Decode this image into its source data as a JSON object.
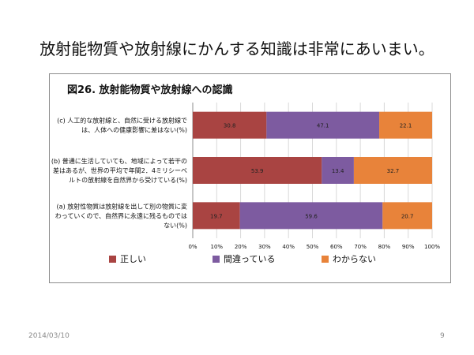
{
  "slide": {
    "title": "放射能物質や放射線にかんする知識は非常にあいまい。",
    "date": "2014/03/10",
    "page_number": "9"
  },
  "colors": {
    "correct": "#A94442",
    "incorrect": "#7D5BA0",
    "dont_know": "#E8833A",
    "grid": "#d9d9d9",
    "axis": "#8c8c8c"
  },
  "chart_data": {
    "type": "bar",
    "orientation": "horizontal",
    "stacked": "percent",
    "title": "図26.  放射能物質や放射線への認識",
    "categories": [
      {
        "lines": [
          "(c) 人工的な放射線と、自然に受ける放射線で",
          "は、人体への健康影響に差はない(%)"
        ]
      },
      {
        "lines": [
          "(b) 普通に生活していても、地域によって若干の",
          "差はあるが、世界の平均で年間2．4ミリシーベ",
          "ルトの放射線を自然界から受けている(%)"
        ]
      },
      {
        "lines": [
          "(a) 放射性物質は放射線を出して別の物質に変",
          "わっていくので、自然界に永遠に残るものでは",
          "ない(%)"
        ]
      }
    ],
    "series": [
      {
        "name": "正しい",
        "color_key": "correct",
        "values": [
          30.8,
          53.9,
          19.7
        ]
      },
      {
        "name": "間違っている",
        "color_key": "incorrect",
        "values": [
          47.1,
          13.4,
          59.6
        ]
      },
      {
        "name": "わからない",
        "color_key": "dont_know",
        "values": [
          22.1,
          32.7,
          20.7
        ]
      }
    ],
    "xlim": [
      0,
      100
    ],
    "xticks": [
      "0%",
      "10%",
      "20%",
      "30%",
      "40%",
      "50%",
      "60%",
      "70%",
      "80%",
      "90%",
      "100%"
    ],
    "grid": true,
    "legend_position": "bottom"
  }
}
